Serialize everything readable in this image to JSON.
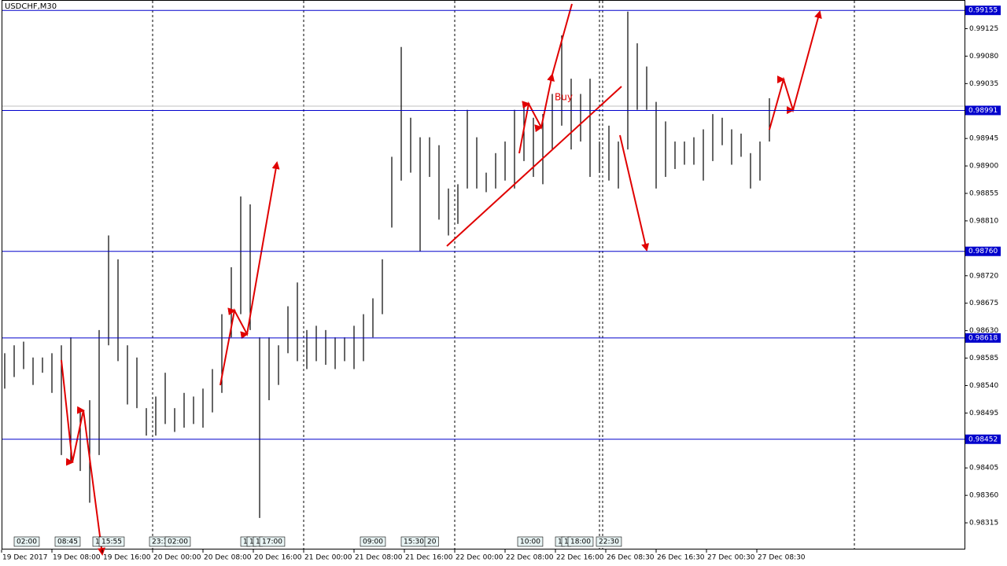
{
  "chart_data": {
    "type": "range_bar",
    "title": "USDCHF,M30",
    "highs": [
      0.98593,
      0.98606,
      0.98612,
      0.98586,
      0.98586,
      0.98593,
      0.98606,
      0.98619,
      0.98503,
      0.98516,
      0.98631,
      0.98786,
      0.98747,
      0.98606,
      0.98586,
      0.98503,
      0.98522,
      0.98561,
      0.98503,
      0.98528,
      0.98522,
      0.98535,
      0.98567,
      0.98657,
      0.98734,
      0.9885,
      0.98837,
      0.98619,
      0.98619,
      0.98606,
      0.9867,
      0.98709,
      0.98631,
      0.98638,
      0.98631,
      0.98619,
      0.98619,
      0.98638,
      0.98657,
      0.98683,
      0.98747,
      0.98915,
      0.99095,
      0.98979,
      0.98947,
      0.98947,
      0.98934,
      0.98863,
      0.9887,
      0.98992,
      0.98947,
      0.98889,
      0.98921,
      0.9894,
      0.98992,
      0.98998,
      0.98979,
      0.98985,
      0.99018,
      0.99114,
      0.99043,
      0.99018,
      0.99043,
      0.9894,
      0.98966,
      0.9894,
      0.99153,
      0.99101,
      0.99063,
      0.99005,
      0.98973,
      0.9894,
      0.9894,
      0.98947,
      0.9896,
      0.98985,
      0.98979,
      0.9896,
      0.98953,
      0.98921,
      0.9894,
      0.99011
    ],
    "lows": [
      0.98535,
      0.98554,
      0.98567,
      0.98541,
      0.98561,
      0.98528,
      0.98426,
      0.98413,
      0.984,
      0.98348,
      0.98426,
      0.98606,
      0.9858,
      0.98509,
      0.98503,
      0.98458,
      0.98458,
      0.98477,
      0.98464,
      0.98471,
      0.98477,
      0.98471,
      0.98496,
      0.98528,
      0.98619,
      0.98657,
      0.98631,
      0.98323,
      0.98516,
      0.98541,
      0.98593,
      0.9858,
      0.98567,
      0.9858,
      0.98574,
      0.98567,
      0.9858,
      0.98567,
      0.9858,
      0.98619,
      0.98657,
      0.98799,
      0.98876,
      0.98889,
      0.9876,
      0.98882,
      0.98812,
      0.98786,
      0.98805,
      0.98863,
      0.98863,
      0.98857,
      0.98863,
      0.98876,
      0.98863,
      0.98908,
      0.98882,
      0.9887,
      0.98927,
      0.98966,
      0.98927,
      0.9894,
      0.98882,
      0.98889,
      0.98876,
      0.98863,
      0.98927,
      0.98992,
      0.98992,
      0.98863,
      0.98882,
      0.98895,
      0.98902,
      0.98902,
      0.98876,
      0.98908,
      0.98934,
      0.98902,
      0.98915,
      0.98863,
      0.98876,
      0.9894
    ],
    "color": "#000000",
    "ylim": [
      0.9827,
      0.99172
    ],
    "yticks": [
      {
        "value": 0.99125,
        "label": "0.99125"
      },
      {
        "value": 0.9908,
        "label": "0.99080"
      },
      {
        "value": 0.99035,
        "label": "0.99035"
      },
      {
        "value": 0.98945,
        "label": "0.98945"
      },
      {
        "value": 0.989,
        "label": "0.98900"
      },
      {
        "value": 0.98855,
        "label": "0.98855"
      },
      {
        "value": 0.9881,
        "label": "0.98810"
      },
      {
        "value": 0.9872,
        "label": "0.98720"
      },
      {
        "value": 0.98675,
        "label": "0.98675"
      },
      {
        "value": 0.9863,
        "label": "0.98630"
      },
      {
        "value": 0.98585,
        "label": "0.98585"
      },
      {
        "value": 0.9854,
        "label": "0.98540"
      },
      {
        "value": 0.98495,
        "label": "0.98495"
      },
      {
        "value": 0.98405,
        "label": "0.98405"
      },
      {
        "value": 0.9836,
        "label": "0.98360"
      },
      {
        "value": 0.98315,
        "label": "0.98315"
      }
    ],
    "levels": [
      {
        "value": 0.99155,
        "label": "0.99155"
      },
      {
        "value": 0.98991,
        "label": "0.98991"
      },
      {
        "value": 0.9876,
        "label": "0.98760"
      },
      {
        "value": 0.98618,
        "label": "0.98618"
      },
      {
        "value": 0.98452,
        "label": "0.98452"
      }
    ],
    "level_color": "#0000cc",
    "time_labels": [
      "19 Dec 2017",
      "19 Dec 08:00",
      "19 Dec 16:00",
      "20 Dec 00:00",
      "20 Dec 08:00",
      "20 Dec 16:00",
      "21 Dec 00:00",
      "21 Dec 08:00",
      "21 Dec 16:00",
      "22 Dec 00:00",
      "22 Dec 08:00",
      "22 Dec 16:00",
      "26 Dec 08:30",
      "26 Dec 16:30",
      "27 Dec 00:30",
      "27 Dec 08:30"
    ],
    "markers": [
      "02:00",
      "08:45",
      "1",
      "15:55",
      "23:3",
      "02:00",
      "1",
      "1",
      "1",
      "17:00",
      "09:00",
      "15:30",
      "20",
      "10:00",
      "1",
      "1",
      "18:00",
      "22:30"
    ],
    "annotation": "Buy"
  }
}
